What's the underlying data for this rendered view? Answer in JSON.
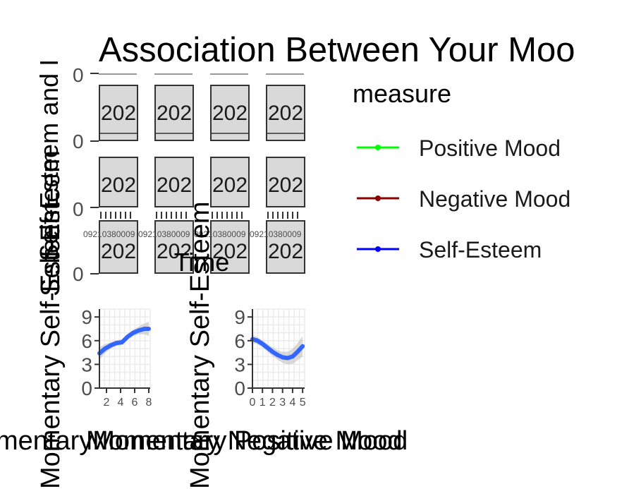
{
  "figure": {
    "title": "Association Between Your  Moo",
    "y_label_top": "Self-Esteem and I",
    "overlapping_y_labels": [
      "Self-Esteem",
      "Self-Esteem",
      "Momentary Self-Esteem"
    ],
    "x_axis_overlap": "Time",
    "strip_label": "202",
    "facet_tick_labels": [
      "0",
      "0",
      "0",
      "0"
    ],
    "time_tick_text": "09:00",
    "time_tick_overlap": "09210380009"
  },
  "legend": {
    "title": "measure",
    "items": [
      {
        "label": "Positive Mood",
        "color": "#00ff00"
      },
      {
        "label": "Negative Mood",
        "color": "#8b0000"
      },
      {
        "label": "Self-Esteem",
        "color": "#0000ff"
      }
    ]
  },
  "chart_data": [
    {
      "type": "line",
      "panel": "Positive Mood",
      "xlabel": "Momentary Positive Mood",
      "ylabel": "Momentary Self-Esteem",
      "xlim": [
        1,
        8.2
      ],
      "ylim": [
        0,
        10
      ],
      "xticks": [
        2,
        4,
        6,
        8
      ],
      "yticks": [
        0,
        3,
        6,
        9
      ],
      "grid": true,
      "x_label_display": "mentaryMomentary Positive Mood",
      "series": [
        {
          "x": [
            1,
            1.8,
            2.6,
            3.4,
            4.2,
            5,
            5.8,
            6.6,
            7.4,
            8
          ],
          "y": [
            4.4,
            5.0,
            5.4,
            5.7,
            5.8,
            6.5,
            7.0,
            7.3,
            7.5,
            7.5
          ],
          "band_width": [
            0.8,
            0.55,
            0.4,
            0.35,
            0.35,
            0.35,
            0.4,
            0.5,
            0.7,
            0.9
          ],
          "color": "#3366ff"
        }
      ]
    },
    {
      "type": "line",
      "panel": "Negative Mood",
      "xlabel": "Momentary Negative Mood",
      "ylabel": "Momentary Self-Esteem",
      "xlim": [
        0,
        5.2
      ],
      "ylim": [
        0,
        10
      ],
      "xticks": [
        0,
        1,
        2,
        3,
        4,
        5
      ],
      "yticks": [
        0,
        3,
        6,
        9
      ],
      "grid": true,
      "series": [
        {
          "x": [
            0,
            0.5,
            1,
            1.5,
            2,
            2.5,
            3,
            3.5,
            4,
            4.5,
            5
          ],
          "y": [
            6.2,
            6.0,
            5.6,
            5.1,
            4.6,
            4.2,
            3.9,
            3.8,
            4.0,
            4.6,
            5.3
          ],
          "band_width": [
            0.5,
            0.45,
            0.45,
            0.5,
            0.55,
            0.6,
            0.7,
            0.8,
            0.95,
            1.1,
            1.3
          ],
          "color": "#3366ff"
        }
      ]
    }
  ]
}
